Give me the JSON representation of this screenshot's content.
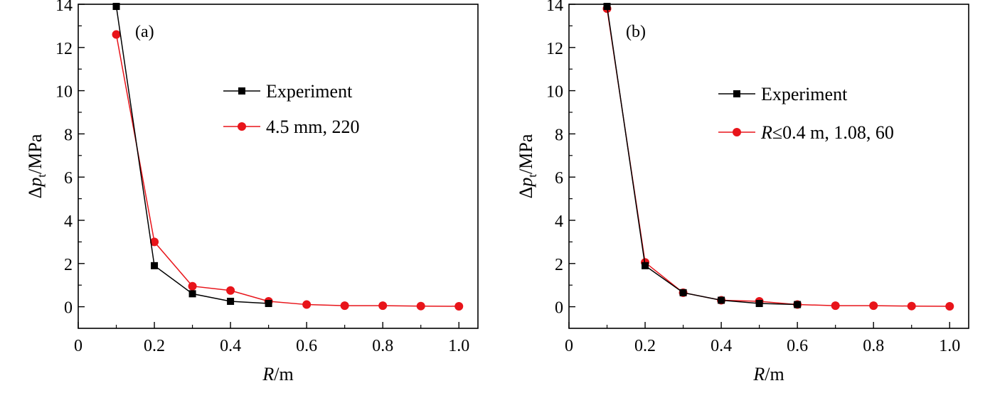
{
  "chart_data": [
    {
      "type": "line",
      "panel_label": "(a)",
      "xlabel_symbol": "R",
      "xlabel_unit": "/m",
      "ylabel_prefix": "Δ",
      "ylabel_symbol": "p",
      "ylabel_subscript": "t",
      "ylabel_unit": "/MPa",
      "xlim": [
        0,
        1.05
      ],
      "ylim": [
        -1,
        14
      ],
      "xticks": [
        0,
        0.2,
        0.4,
        0.6,
        0.8,
        1.0
      ],
      "xtick_labels": [
        "0",
        "0.2",
        "0.4",
        "0.6",
        "0.8",
        "1.0"
      ],
      "yticks": [
        0,
        2,
        4,
        6,
        8,
        10,
        12,
        14
      ],
      "ytick_labels": [
        "0",
        "2",
        "4",
        "6",
        "8",
        "10",
        "12",
        "14"
      ],
      "grid": false,
      "legend_position": "upper-right",
      "series": [
        {
          "name": "Experiment",
          "color": "#000000",
          "marker": "square",
          "x": [
            0.1,
            0.2,
            0.3,
            0.4,
            0.5
          ],
          "y": [
            13.9,
            1.9,
            0.6,
            0.25,
            0.15
          ]
        },
        {
          "name": "4.5 mm, 220",
          "color": "#e8141a",
          "marker": "circle",
          "x": [
            0.1,
            0.2,
            0.3,
            0.4,
            0.5,
            0.6,
            0.7,
            0.8,
            0.9,
            1.0
          ],
          "y": [
            12.6,
            3.0,
            0.95,
            0.75,
            0.25,
            0.1,
            0.05,
            0.05,
            0.03,
            0.02
          ]
        }
      ]
    },
    {
      "type": "line",
      "panel_label": "(b)",
      "xlabel_symbol": "R",
      "xlabel_unit": "/m",
      "ylabel_prefix": "Δ",
      "ylabel_symbol": "p",
      "ylabel_subscript": "t",
      "ylabel_unit": "/MPa",
      "xlim": [
        0,
        1.05
      ],
      "ylim": [
        -1,
        14
      ],
      "xticks": [
        0,
        0.2,
        0.4,
        0.6,
        0.8,
        1.0
      ],
      "xtick_labels": [
        "0",
        "0.2",
        "0.4",
        "0.6",
        "0.8",
        "1.0"
      ],
      "yticks": [
        0,
        2,
        4,
        6,
        8,
        10,
        12,
        14
      ],
      "ytick_labels": [
        "0",
        "2",
        "4",
        "6",
        "8",
        "10",
        "12",
        "14"
      ],
      "grid": false,
      "legend_position": "upper-right",
      "series": [
        {
          "name": "Experiment",
          "color": "#000000",
          "marker": "square",
          "x": [
            0.1,
            0.2,
            0.3,
            0.4,
            0.5,
            0.6
          ],
          "y": [
            13.9,
            1.9,
            0.65,
            0.3,
            0.15,
            0.1
          ]
        },
        {
          "name_italic_part": "R",
          "name_rest": "≤0.4 m, 1.08, 60",
          "color": "#e8141a",
          "marker": "circle",
          "x": [
            0.1,
            0.2,
            0.3,
            0.4,
            0.5,
            0.6,
            0.7,
            0.8,
            0.9,
            1.0
          ],
          "y": [
            13.8,
            2.05,
            0.65,
            0.3,
            0.25,
            0.1,
            0.05,
            0.05,
            0.03,
            0.02
          ]
        }
      ]
    }
  ]
}
